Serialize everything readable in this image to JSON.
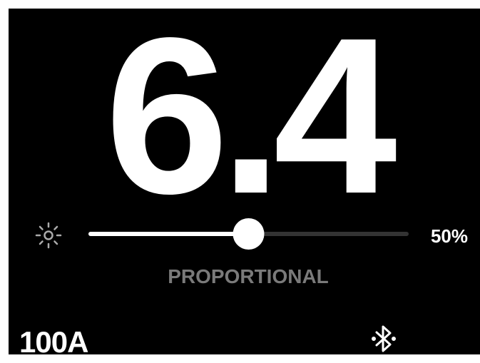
{
  "display": {
    "reading": 6.4,
    "brightness": {
      "value": 50,
      "label": "50%"
    },
    "mode": "PROPORTIONAL",
    "rating": "100A"
  }
}
